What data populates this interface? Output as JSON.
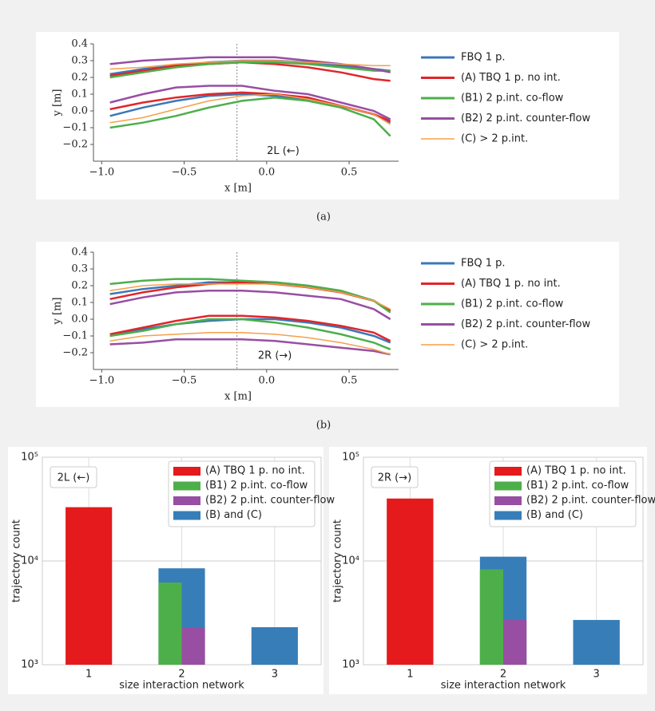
{
  "captions": [
    "(a)",
    "(b)"
  ],
  "chart_data": [
    {
      "type": "line",
      "annotation": "2L (←)",
      "annotation_x": 0.1,
      "annotation_y": -0.24,
      "vline_x": -0.18,
      "xlabel": "x [m]",
      "ylabel": "y [m]",
      "x": [
        -0.95,
        -0.75,
        -0.55,
        -0.35,
        -0.15,
        0.05,
        0.25,
        0.45,
        0.65,
        0.75
      ],
      "xlim": [
        -1.05,
        0.8
      ],
      "ylim": [
        -0.3,
        0.4
      ],
      "xticks": [
        {
          "value": -1,
          "label": "−1.0"
        },
        {
          "value": -0.5,
          "label": "−0.5"
        },
        {
          "value": 0,
          "label": "0.0"
        },
        {
          "value": 0.5,
          "label": "0.5"
        }
      ],
      "yticks": [
        {
          "value": -0.2,
          "label": "−0.2"
        },
        {
          "value": -0.1,
          "label": "−0.1"
        },
        {
          "value": 0,
          "label": "0.0"
        },
        0.1,
        0.2,
        0.3,
        0.4
      ],
      "series": [
        {
          "name": "FBQ 1 p.",
          "color": "#3a78b8",
          "values": [
            0.22,
            0.25,
            0.27,
            0.29,
            0.3,
            0.3,
            0.29,
            0.27,
            0.25,
            0.24
          ],
          "values_lower": [
            -0.03,
            0.02,
            0.06,
            0.09,
            0.1,
            0.09,
            0.07,
            0.03,
            -0.02,
            -0.07
          ]
        },
        {
          "name": "(A) TBQ 1 p. no int.",
          "color": "#e0262b",
          "values": [
            0.21,
            0.24,
            0.27,
            0.28,
            0.29,
            0.28,
            0.26,
            0.23,
            0.19,
            0.18
          ],
          "values_lower": [
            0.01,
            0.05,
            0.08,
            0.1,
            0.11,
            0.1,
            0.08,
            0.03,
            -0.02,
            -0.06
          ]
        },
        {
          "name": "(B1) 2 p.int. co-flow",
          "color": "#4daf4a",
          "values": [
            0.2,
            0.23,
            0.26,
            0.28,
            0.29,
            0.29,
            0.28,
            0.26,
            0.24,
            0.24
          ],
          "values_lower": [
            -0.1,
            -0.07,
            -0.03,
            0.02,
            0.06,
            0.08,
            0.06,
            0.02,
            -0.05,
            -0.15
          ]
        },
        {
          "name": "(B2) 2 p.int. counter-flow",
          "color": "#984ea3",
          "values": [
            0.28,
            0.3,
            0.31,
            0.32,
            0.32,
            0.32,
            0.3,
            0.28,
            0.25,
            0.23
          ],
          "values_lower": [
            0.05,
            0.1,
            0.14,
            0.15,
            0.15,
            0.12,
            0.1,
            0.05,
            0.0,
            -0.05
          ]
        },
        {
          "name": "(C) > 2 p.int.",
          "color": "#f5a04a",
          "values": [
            0.25,
            0.26,
            0.28,
            0.29,
            0.3,
            0.3,
            0.29,
            0.28,
            0.27,
            0.27
          ],
          "values_lower": [
            -0.07,
            -0.04,
            0.01,
            0.06,
            0.09,
            0.1,
            0.07,
            0.03,
            -0.02,
            -0.08
          ]
        }
      ]
    },
    {
      "type": "line",
      "annotation": "2R (→)",
      "annotation_x": 0.05,
      "annotation_y": -0.22,
      "vline_x": -0.18,
      "xlabel": "x [m]",
      "ylabel": "y [m]",
      "x": [
        -0.95,
        -0.75,
        -0.55,
        -0.35,
        -0.15,
        0.05,
        0.25,
        0.45,
        0.65,
        0.75
      ],
      "xlim": [
        -1.05,
        0.8
      ],
      "ylim": [
        -0.3,
        0.4
      ],
      "xticks": [
        {
          "value": -1,
          "label": "−1.0"
        },
        {
          "value": -0.5,
          "label": "−0.5"
        },
        {
          "value": 0,
          "label": "0.0"
        },
        {
          "value": 0.5,
          "label": "0.5"
        }
      ],
      "yticks": [
        {
          "value": -0.2,
          "label": "−0.2"
        },
        {
          "value": -0.1,
          "label": "−0.1"
        },
        {
          "value": 0,
          "label": "0.0"
        },
        0.1,
        0.2,
        0.3,
        0.4
      ],
      "series": [
        {
          "name": "FBQ 1 p.",
          "color": "#3a78b8",
          "values": [
            0.15,
            0.18,
            0.2,
            0.22,
            0.22,
            0.22,
            0.2,
            0.17,
            0.11,
            0.05
          ],
          "values_lower": [
            -0.1,
            -0.06,
            -0.03,
            -0.01,
            0.0,
            0.0,
            -0.02,
            -0.05,
            -0.1,
            -0.14
          ]
        },
        {
          "name": "(A) TBQ 1 p. no int.",
          "color": "#e0262b",
          "values": [
            0.12,
            0.16,
            0.19,
            0.21,
            0.22,
            0.21,
            0.19,
            0.16,
            0.11,
            0.05
          ],
          "values_lower": [
            -0.09,
            -0.05,
            -0.01,
            0.02,
            0.02,
            0.01,
            -0.01,
            -0.04,
            -0.08,
            -0.13
          ]
        },
        {
          "name": "(B1) 2 p.int. co-flow",
          "color": "#4daf4a",
          "values": [
            0.21,
            0.23,
            0.24,
            0.24,
            0.23,
            0.22,
            0.2,
            0.17,
            0.11,
            0.04
          ],
          "values_lower": [
            -0.1,
            -0.07,
            -0.03,
            0.0,
            0.0,
            -0.02,
            -0.05,
            -0.09,
            -0.14,
            -0.18
          ]
        },
        {
          "name": "(B2) 2 p.int. counter-flow",
          "color": "#984ea3",
          "values": [
            0.09,
            0.13,
            0.16,
            0.17,
            0.17,
            0.16,
            0.14,
            0.12,
            0.06,
            0.0
          ],
          "values_lower": [
            -0.15,
            -0.14,
            -0.12,
            -0.12,
            -0.12,
            -0.13,
            -0.15,
            -0.17,
            -0.19,
            -0.21
          ]
        },
        {
          "name": "(C) > 2 p.int.",
          "color": "#f5a04a",
          "values": [
            0.17,
            0.2,
            0.21,
            0.21,
            0.21,
            0.21,
            0.19,
            0.16,
            0.11,
            0.06
          ],
          "values_lower": [
            -0.13,
            -0.1,
            -0.09,
            -0.08,
            -0.08,
            -0.09,
            -0.11,
            -0.14,
            -0.18,
            -0.21
          ]
        }
      ]
    },
    {
      "type": "bar",
      "annotation": "2L (←)",
      "xlabel": "size interaction network",
      "ylabel": "trajectory count",
      "log_scale": true,
      "ylim": [
        1000,
        100000
      ],
      "yticks": [
        {
          "value": 1000,
          "label": "10³"
        },
        {
          "value": 10000,
          "label": "10⁴"
        },
        {
          "value": 100000,
          "label": "10⁵"
        }
      ],
      "categories": [
        "1",
        "2",
        "3"
      ],
      "series": [
        {
          "name": "(A) TBQ 1 p. no int.",
          "color": "#e41a1c",
          "values": [
            33000,
            null,
            null
          ]
        },
        {
          "name": "(B1) 2 p.int. co-flow",
          "color": "#4daf4a",
          "values": [
            null,
            6200,
            null
          ]
        },
        {
          "name": "(B2) 2 p.int. counter-flow",
          "color": "#984ea3",
          "values": [
            null,
            2300,
            null
          ]
        },
        {
          "name": "(B) and (C)",
          "color": "#377eb8",
          "values": [
            null,
            8500,
            2300
          ]
        }
      ]
    },
    {
      "type": "bar",
      "annotation": "2R (→)",
      "xlabel": "size interaction network",
      "ylabel": "trajectory count",
      "log_scale": true,
      "ylim": [
        1000,
        100000
      ],
      "yticks": [
        {
          "value": 1000,
          "label": "10³"
        },
        {
          "value": 10000,
          "label": "10⁴"
        },
        {
          "value": 100000,
          "label": "10⁵"
        }
      ],
      "categories": [
        "1",
        "2",
        "3"
      ],
      "series": [
        {
          "name": "(A) TBQ 1 p. no int.",
          "color": "#e41a1c",
          "values": [
            40000,
            null,
            null
          ]
        },
        {
          "name": "(B1) 2 p.int. co-flow",
          "color": "#4daf4a",
          "values": [
            null,
            8300,
            null
          ]
        },
        {
          "name": "(B2) 2 p.int. counter-flow",
          "color": "#984ea3",
          "values": [
            null,
            2700,
            null
          ]
        },
        {
          "name": "(B) and (C)",
          "color": "#377eb8",
          "values": [
            null,
            11000,
            2700
          ]
        }
      ]
    }
  ]
}
